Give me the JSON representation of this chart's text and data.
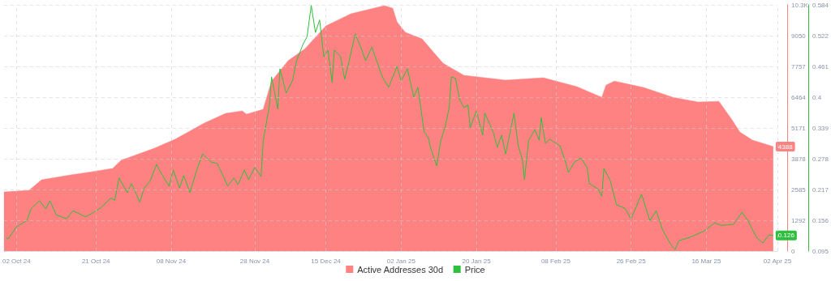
{
  "chart_data": {
    "type": "area",
    "xlim": [
      "2024-09-29",
      "2025-04-02"
    ],
    "xticks": [
      {
        "value": "2024-10-02",
        "label": "02 Oct 24"
      },
      {
        "value": "2024-10-21",
        "label": "21 Oct 24"
      },
      {
        "value": "2024-11-08",
        "label": "08 Nov 24"
      },
      {
        "value": "2024-11-28",
        "label": "28 Nov 24"
      },
      {
        "value": "2024-12-15",
        "label": "15 Dec 24"
      },
      {
        "value": "2025-01-02",
        "label": "02 Jan 25"
      },
      {
        "value": "2025-01-20",
        "label": "20 Jan 25"
      },
      {
        "value": "2025-02-08",
        "label": "08 Feb 25"
      },
      {
        "value": "2025-02-26",
        "label": "26 Feb 25"
      },
      {
        "value": "2025-03-16",
        "label": "16 Mar 25"
      },
      {
        "value": "2025-04-02",
        "label": "02 Apr 25"
      }
    ],
    "ylim": [
      0,
      10343
    ],
    "yticks": [
      0,
      1292,
      2585,
      3878,
      5171,
      6464,
      7757,
      9050,
      {
        "value": 10343,
        "label": "10.3K"
      }
    ],
    "y2lim": [
      0.095,
      0.584
    ],
    "y2ticks": [
      0.095,
      0.156,
      0.217,
      0.278,
      0.339,
      0.4,
      0.461,
      0.522,
      0.584
    ],
    "grid": true,
    "legend": "bottom",
    "series": [
      {
        "name": "Active Addresses 30d",
        "color": "#ff8282",
        "x": [
          "2024-09-29",
          "2024-10-05",
          "2024-10-08",
          "2024-10-15",
          "2024-10-20",
          "2024-10-25",
          "2024-10-27",
          "2024-11-04",
          "2024-11-09",
          "2024-11-16",
          "2024-11-21",
          "2024-11-25",
          "2024-11-26",
          "2024-11-30",
          "2024-12-02",
          "2024-12-06",
          "2024-12-10",
          "2024-12-15",
          "2024-12-21",
          "2024-12-29",
          "2024-12-31",
          "2025-01-01",
          "2025-01-03",
          "2025-01-07",
          "2025-01-12",
          "2025-01-17",
          "2025-01-27",
          "2025-02-05",
          "2025-02-13",
          "2025-02-19",
          "2025-02-20",
          "2025-02-22",
          "2025-03-01",
          "2025-03-08",
          "2025-03-14",
          "2025-03-19",
          "2025-03-22",
          "2025-03-24",
          "2025-03-27",
          "2025-04-01"
        ],
        "values": [
          2480,
          2550,
          2990,
          3200,
          3330,
          3470,
          3810,
          4320,
          4700,
          5380,
          5780,
          5890,
          5750,
          5950,
          7140,
          8000,
          8500,
          9460,
          9970,
          10310,
          10200,
          9630,
          9190,
          8910,
          7890,
          7380,
          7180,
          7280,
          6910,
          6460,
          6970,
          7140,
          6870,
          6460,
          6260,
          6290,
          5550,
          5000,
          4660,
          4388
        ],
        "value_labels": [
          null,
          null,
          null,
          null,
          null,
          null,
          null,
          null,
          null,
          null,
          null,
          null,
          null,
          null,
          null,
          null,
          null,
          null,
          null,
          null,
          null,
          null,
          null,
          null,
          null,
          null,
          null,
          null,
          null,
          null,
          null,
          null,
          null,
          null,
          null,
          null,
          null,
          null,
          null,
          "4388"
        ]
      },
      {
        "name": "Price",
        "type": "line",
        "axis": "y2",
        "color": "#2fbf3f",
        "x": [
          "2024-09-29T12:00",
          "2024-09-30",
          "2024-10-02",
          "2024-10-04T12:00",
          "2024-10-05T12:00",
          "2024-10-07T12:00",
          "2024-10-09",
          "2024-10-10",
          "2024-10-11T12:00",
          "2024-10-14",
          "2024-10-15T12:00",
          "2024-10-18T12:00",
          "2024-10-20T12:00",
          "2024-10-22T12:00",
          "2024-10-24T12:00",
          "2024-10-25T12:00",
          "2024-10-26T12:00",
          "2024-10-28T12:00",
          "2024-10-29T12:00",
          "2024-10-31T12:00",
          "2024-11-01T12:00",
          "2024-11-03",
          "2024-11-04T12:00",
          "2024-11-05T12:00",
          "2024-11-07T12:00",
          "2024-11-08T12:00",
          "2024-11-10",
          "2024-11-11",
          "2024-11-12T12:00",
          "2024-11-14",
          "2024-11-15T12:00",
          "2024-11-17T12:00",
          "2024-11-19",
          "2024-11-20T12:00",
          "2024-11-21T12:00",
          "2024-11-23",
          "2024-11-24",
          "2024-11-25T12:00",
          "2024-11-26T12:00",
          "2024-11-28",
          "2024-11-29T12:00",
          "2024-11-30",
          "2024-12-01T12:00",
          "2024-12-02",
          "2024-12-03T12:00",
          "2024-12-04",
          "2024-12-05T12:00",
          "2024-12-07",
          "2024-12-08",
          "2024-12-09T12:00",
          "2024-12-10T12:00",
          "2024-12-11T12:00",
          "2024-12-12T12:00",
          "2024-12-13T12:00",
          "2024-12-14T12:00",
          "2024-12-15T12:00",
          "2024-12-16T12:00",
          "2024-12-17",
          "2024-12-18T12:00",
          "2024-12-19T12:00",
          "2024-12-20T12:00",
          "2024-12-22",
          "2024-12-23T12:00",
          "2024-12-24T12:00",
          "2024-12-26",
          "2024-12-28T12:00",
          "2024-12-30",
          "2025-01-01",
          "2025-01-02",
          "2025-01-03T12:00",
          "2025-01-05",
          "2025-01-06",
          "2025-01-07T12:00",
          "2025-01-08T12:00",
          "2025-01-09",
          "2025-01-10T12:00",
          "2025-01-11T12:00",
          "2025-01-12T12:00",
          "2025-01-13T12:00",
          "2025-01-14",
          "2025-01-15",
          "2025-01-16",
          "2025-01-17",
          "2025-01-18",
          "2025-01-18T12:00",
          "2025-01-20",
          "2025-01-21T12:00",
          "2025-01-22",
          "2025-01-24",
          "2025-01-25",
          "2025-01-26",
          "2025-01-27",
          "2025-01-29",
          "2025-01-30",
          "2025-01-31",
          "2025-01-31T12:00",
          "2025-02-01T12:00",
          "2025-02-03",
          "2025-02-04",
          "2025-02-04T12:00",
          "2025-02-05T12:00",
          "2025-02-06T12:00",
          "2025-02-09",
          "2025-02-10T12:00",
          "2025-02-11",
          "2025-02-12T12:00",
          "2025-02-14",
          "2025-02-15T12:00",
          "2025-02-16",
          "2025-02-18",
          "2025-02-19",
          "2025-02-19T12:00",
          "2025-02-21",
          "2025-02-22T12:00",
          "2025-02-24T12:00",
          "2025-02-26",
          "2025-02-28T12:00",
          "2025-03-02T12:00",
          "2025-03-04",
          "2025-03-05T12:00",
          "2025-03-07T12:00",
          "2025-03-08T12:00",
          "2025-03-09T12:00",
          "2025-03-12",
          "2025-03-15T12:00",
          "2025-03-18",
          "2025-03-19T12:00",
          "2025-03-22T12:00",
          "2025-03-24T12:00",
          "2025-03-26",
          "2025-03-27",
          "2025-03-28",
          "2025-03-29T12:00",
          "2025-03-31",
          "2025-04-01"
        ],
        "values": [
          0.122,
          0.119,
          0.143,
          0.156,
          0.179,
          0.195,
          0.179,
          0.195,
          0.167,
          0.159,
          0.175,
          0.163,
          0.172,
          0.183,
          0.2,
          0.196,
          0.24,
          0.211,
          0.229,
          0.192,
          0.219,
          0.235,
          0.267,
          0.251,
          0.224,
          0.256,
          0.22,
          0.245,
          0.211,
          0.253,
          0.288,
          0.272,
          0.269,
          0.243,
          0.224,
          0.24,
          0.227,
          0.256,
          0.237,
          0.261,
          0.243,
          0.313,
          0.385,
          0.441,
          0.377,
          0.457,
          0.409,
          0.433,
          0.473,
          0.505,
          0.521,
          0.583,
          0.529,
          0.554,
          0.481,
          0.494,
          0.43,
          0.494,
          0.481,
          0.436,
          0.47,
          0.526,
          0.497,
          0.473,
          0.5,
          0.441,
          0.42,
          0.462,
          0.433,
          0.457,
          0.401,
          0.42,
          0.332,
          0.32,
          0.301,
          0.264,
          0.315,
          0.341,
          0.38,
          0.441,
          0.438,
          0.396,
          0.38,
          0.385,
          0.34,
          0.373,
          0.325,
          0.369,
          0.332,
          0.301,
          0.325,
          0.288,
          0.369,
          0.304,
          0.277,
          0.237,
          0.315,
          0.336,
          0.315,
          0.36,
          0.309,
          0.317,
          0.304,
          0.267,
          0.251,
          0.272,
          0.28,
          0.261,
          0.229,
          0.219,
          0.204,
          0.259,
          0.235,
          0.187,
          0.18,
          0.159,
          0.208,
          0.155,
          0.175,
          0.138,
          0.108,
          0.098,
          0.116,
          0.122,
          0.135,
          0.151,
          0.146,
          0.148,
          0.172,
          0.155,
          0.138,
          0.122,
          0.111,
          0.127,
          0.126
        ],
        "value_labels": [
          null,
          null,
          null,
          null,
          null,
          null,
          null,
          null,
          null,
          null,
          null,
          null,
          null,
          null,
          null,
          null,
          null,
          null,
          null,
          null,
          null,
          null,
          null,
          null,
          null,
          null,
          null,
          null,
          null,
          null,
          null,
          null,
          null,
          null,
          null,
          null,
          null,
          null,
          null,
          null,
          null,
          null,
          null,
          null,
          null,
          null,
          null,
          null,
          null,
          null,
          null,
          null,
          null,
          null,
          null,
          null,
          null,
          null,
          null,
          null,
          null,
          null,
          null,
          null,
          null,
          null,
          null,
          null,
          null,
          null,
          null,
          null,
          null,
          null,
          null,
          null,
          null,
          null,
          null,
          null,
          null,
          null,
          null,
          null,
          null,
          null,
          null,
          null,
          null,
          null,
          null,
          null,
          null,
          null,
          null,
          null,
          null,
          null,
          null,
          null,
          null,
          null,
          null,
          null,
          null,
          null,
          null,
          null,
          null,
          null,
          null,
          null,
          null,
          null,
          null,
          null,
          null,
          null,
          null,
          null,
          null,
          null,
          null,
          null,
          null,
          null,
          null,
          null,
          null,
          null,
          null,
          null,
          null,
          null,
          "0.126"
        ]
      }
    ]
  }
}
